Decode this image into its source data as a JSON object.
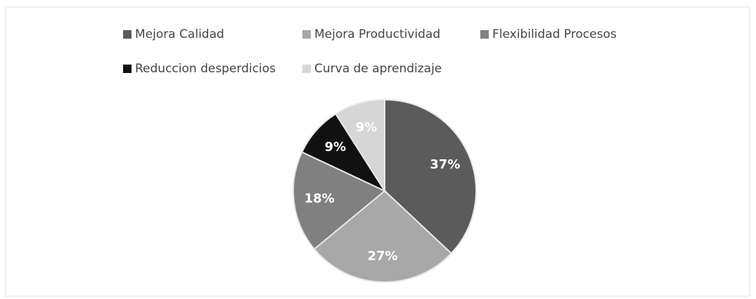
{
  "chart_data": {
    "type": "pie",
    "categories": [
      "Mejora Calidad",
      "Mejora Productividad",
      "Flexibilidad Procesos",
      "Reduccion desperdicios",
      "Curva de aprendizaje"
    ],
    "values": [
      37,
      27,
      18,
      9,
      9
    ],
    "value_labels": [
      "37%",
      "27%",
      "18%",
      "9%",
      "9%"
    ],
    "colors": [
      "#5b5b5b",
      "#a8a8a8",
      "#808080",
      "#111111",
      "#d6d6d6"
    ],
    "legend": "top"
  }
}
